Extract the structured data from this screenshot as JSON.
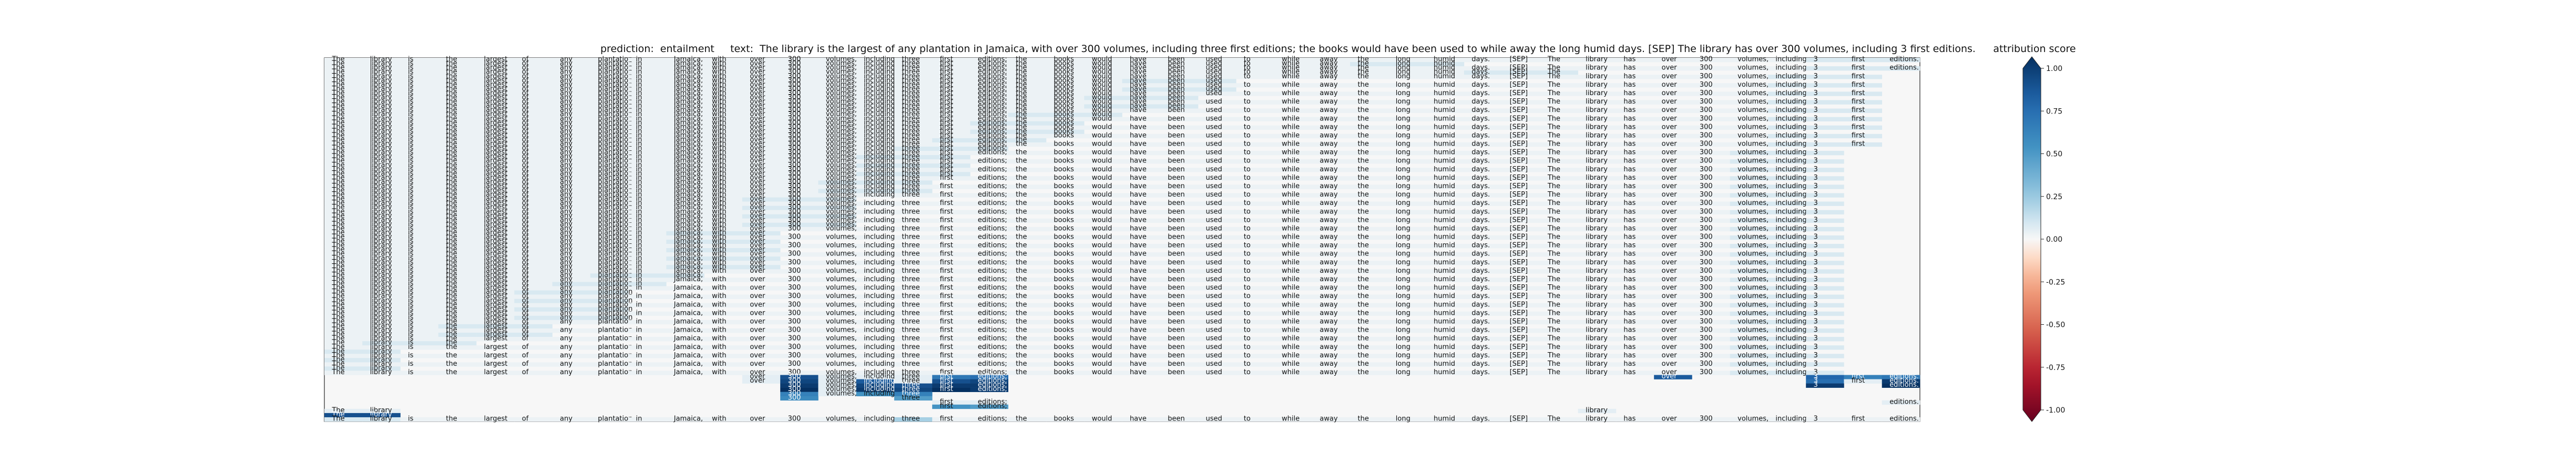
{
  "chart_data": {
    "type": "heatmap",
    "title": "prediction:  entailment     text:  The library is the largest of any plantation in Jamaica, with over 300 volumes, including three first editions; the books would have been used to while away the long humid days. [SEP] The library has over 300 volumes, including 3 first editions.",
    "tokens": [
      "The",
      "library",
      "is",
      "the",
      "largest",
      "of",
      "any",
      "plantation",
      "in",
      "Jamaica,",
      "with",
      "over",
      "300",
      "volumes,",
      "including",
      "three",
      "first",
      "editions;",
      "the",
      "books",
      "would",
      "have",
      "been",
      "used",
      "to",
      "while",
      "away",
      "the",
      "long",
      "humid",
      "days.",
      "[SEP]",
      "The",
      "library",
      "has",
      "over",
      "300",
      "volumes,",
      "including",
      "3",
      "first",
      "editions."
    ],
    "row_ends": [
      42,
      30,
      42,
      33,
      41,
      24,
      41,
      24,
      41,
      23,
      41,
      23,
      41,
      21,
      41,
      20,
      41,
      20,
      41,
      19,
      41,
      18,
      40,
      17,
      40,
      17,
      40,
      17,
      40,
      16,
      40,
      16,
      40,
      14,
      40,
      14,
      40,
      14,
      40,
      14,
      40,
      12,
      40,
      12,
      40,
      12,
      40,
      12,
      40,
      12,
      40,
      10,
      40,
      9,
      40,
      8,
      40,
      8,
      40,
      8,
      40,
      8,
      40,
      6,
      40,
      6,
      40,
      4,
      40,
      2,
      40,
      2,
      40,
      2,
      40
    ],
    "special_rows": [
      {
        "row": 64,
        "show": [
          11,
          12,
          13,
          14,
          15,
          16,
          17,
          35,
          39,
          40,
          41
        ],
        "values": {
          "12": 0.85,
          "16": 0.65,
          "17": 0.7,
          "35": 0.8,
          "39": 0.75,
          "40": 0.6,
          "41": 0.65
        }
      },
      {
        "row": 65,
        "show": [
          11,
          12,
          13,
          14,
          15,
          16,
          17,
          39,
          40,
          41
        ],
        "values": {
          "12": 0.9,
          "14": 0.8,
          "16": 0.85,
          "17": 0.9,
          "39": 0.7,
          "41": 0.95
        }
      },
      {
        "row": 66,
        "show": [
          12,
          13,
          14,
          15,
          16,
          17,
          39,
          41
        ],
        "values": {
          "12": 0.95,
          "14": 0.9,
          "15": 0.85,
          "16": 0.95,
          "17": 0.95,
          "39": 0.95,
          "41": 1.0
        }
      },
      {
        "row": 67,
        "show": [
          12,
          13,
          14,
          15,
          16,
          17
        ],
        "values": {
          "12": 1.0,
          "14": 0.95,
          "15": 0.9,
          "16": 1.0,
          "17": 0.95
        }
      },
      {
        "row": 68,
        "show": [
          12,
          13,
          14,
          15
        ],
        "values": {
          "12": 0.6,
          "14": 0.5,
          "15": 0.6
        }
      },
      {
        "row": 69,
        "show": [
          12,
          15
        ],
        "values": {
          "12": 0.55,
          "15": 0.45
        }
      },
      {
        "row": 70,
        "show": [
          16,
          17,
          41
        ],
        "values": {}
      },
      {
        "row": 71,
        "show": [
          16,
          17
        ],
        "values": {
          "16": 0.5,
          "17": 0.45
        }
      },
      {
        "row": 72,
        "show": [
          0,
          1,
          33
        ],
        "values": {}
      },
      {
        "row": 73,
        "show": [
          0,
          1
        ],
        "values": {
          "0": 0.85,
          "1": 0.85
        }
      }
    ],
    "colorbar": {
      "label": "attribution score",
      "ticks": [
        "1.00",
        "0.75",
        "0.50",
        "0.25",
        "0.00",
        "-0.25",
        "-0.50",
        "-0.75",
        "-1.00"
      ],
      "range": [
        -1.0,
        1.0
      ],
      "colormap": "RdBu"
    }
  }
}
